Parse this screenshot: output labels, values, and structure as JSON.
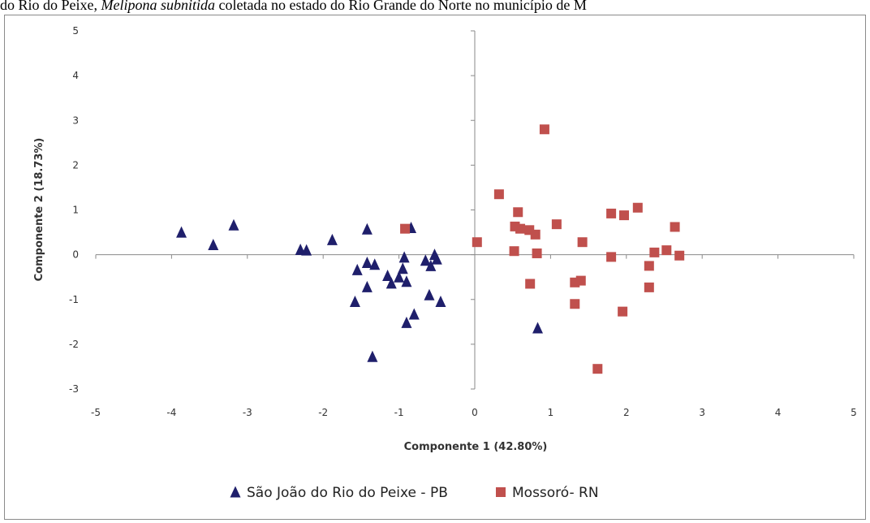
{
  "caption": {
    "prefix": "do Rio do Peixe, ",
    "species": "Melipona subnitida",
    "suffix": " coletada no estado do Rio Grande do Norte no município de M"
  },
  "colors": {
    "series1": "#1f1f6b",
    "series2": "#c0504d",
    "axis": "#8a8a8a"
  },
  "chart_data": {
    "type": "scatter",
    "title": "",
    "xlabel": "Componente 1 (42.80%)",
    "ylabel": "Componente 2  (18.73%)",
    "xlim": [
      -5,
      5
    ],
    "ylim": [
      -3,
      5
    ],
    "xticks": [
      "-5",
      "-4",
      "-3",
      "-2",
      "-1",
      "0",
      "1",
      "2",
      "3",
      "4",
      "5"
    ],
    "yticks": [
      "-3",
      "-2",
      "-1",
      "0",
      "1",
      "2",
      "3",
      "4",
      "5"
    ],
    "grid": false,
    "legend_position": "bottom",
    "series": [
      {
        "name": "São João do Rio do Peixe - PB",
        "marker": "triangle",
        "color": "#1f1f6b",
        "points": [
          [
            -3.87,
            0.5
          ],
          [
            -3.45,
            0.22
          ],
          [
            -3.18,
            0.66
          ],
          [
            -2.3,
            0.11
          ],
          [
            -2.22,
            0.1
          ],
          [
            -1.88,
            0.33
          ],
          [
            -1.42,
            0.57
          ],
          [
            -0.84,
            0.6
          ],
          [
            -1.55,
            -0.34
          ],
          [
            -1.42,
            -0.18
          ],
          [
            -1.32,
            -0.22
          ],
          [
            -1.15,
            -0.47
          ],
          [
            -1.1,
            -0.64
          ],
          [
            -1.0,
            -0.5
          ],
          [
            -0.95,
            -0.31
          ],
          [
            -0.93,
            -0.06
          ],
          [
            -0.9,
            -0.6
          ],
          [
            -0.65,
            -0.13
          ],
          [
            -0.58,
            -0.25
          ],
          [
            -0.53,
            0.0
          ],
          [
            -0.5,
            -0.1
          ],
          [
            -1.42,
            -0.72
          ],
          [
            -1.58,
            -1.05
          ],
          [
            -0.6,
            -0.9
          ],
          [
            -0.8,
            -1.33
          ],
          [
            -0.9,
            -1.52
          ],
          [
            -0.45,
            -1.05
          ],
          [
            -1.35,
            -2.28
          ],
          [
            0.83,
            -1.64
          ]
        ]
      },
      {
        "name": "Mossoró- RN",
        "marker": "square",
        "color": "#c0504d",
        "points": [
          [
            0.92,
            2.8
          ],
          [
            0.32,
            1.35
          ],
          [
            0.57,
            0.95
          ],
          [
            0.53,
            0.63
          ],
          [
            0.6,
            0.58
          ],
          [
            0.72,
            0.55
          ],
          [
            0.8,
            0.45
          ],
          [
            1.08,
            0.68
          ],
          [
            1.8,
            0.92
          ],
          [
            1.97,
            0.88
          ],
          [
            2.15,
            1.05
          ],
          [
            2.64,
            0.62
          ],
          [
            0.03,
            0.28
          ],
          [
            -0.92,
            0.58
          ],
          [
            1.42,
            0.28
          ],
          [
            0.52,
            0.08
          ],
          [
            0.82,
            0.03
          ],
          [
            1.8,
            -0.05
          ],
          [
            2.37,
            0.05
          ],
          [
            2.53,
            0.1
          ],
          [
            2.7,
            -0.02
          ],
          [
            2.3,
            -0.25
          ],
          [
            0.73,
            -0.65
          ],
          [
            1.32,
            -0.62
          ],
          [
            1.4,
            -0.58
          ],
          [
            2.3,
            -0.73
          ],
          [
            1.32,
            -1.1
          ],
          [
            1.95,
            -1.27
          ],
          [
            1.62,
            -2.55
          ]
        ]
      }
    ]
  }
}
